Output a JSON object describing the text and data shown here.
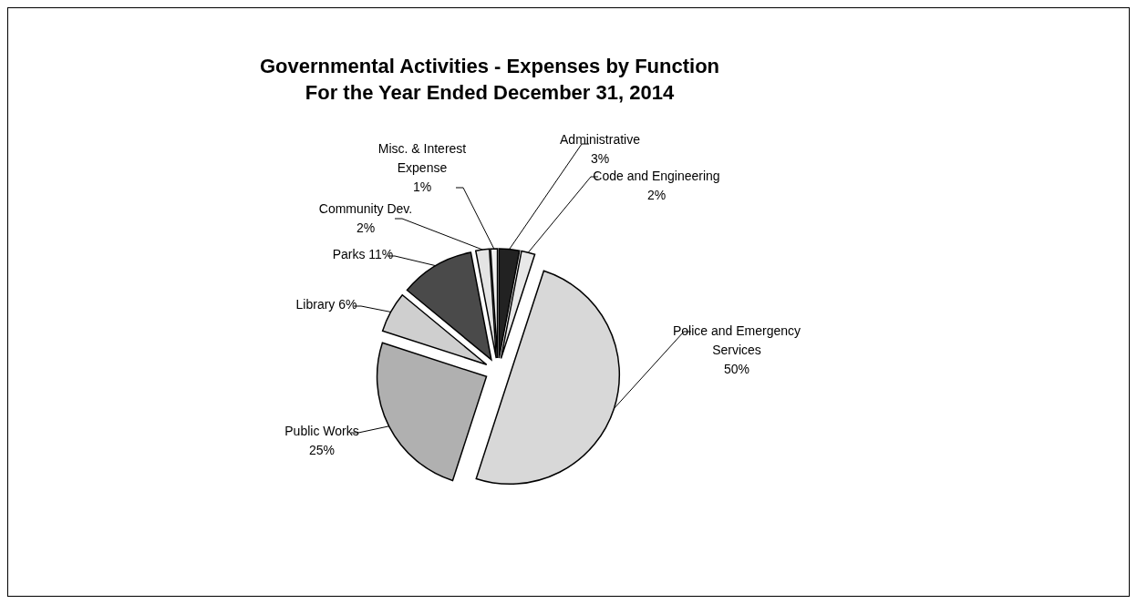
{
  "chart_data": {
    "type": "pie",
    "title": "Governmental Activities - Expenses by Function\nFor the Year Ended December 31, 2014",
    "categories": [
      "Administrative",
      "Code and Engineering",
      "Police and Emergency Services",
      "Public Works",
      "Library",
      "Parks",
      "Community Dev.",
      "Misc. & Interest Expense"
    ],
    "values": [
      3,
      2,
      50,
      25,
      6,
      11,
      2,
      1
    ],
    "colors": [
      "#222222",
      "#e8e8e8",
      "#d8d8d8",
      "#b0b0b0",
      "#cfcfcf",
      "#4a4a4a",
      "#e4e4e4",
      "#f0f0f0"
    ],
    "value_labels": [
      "3%",
      "2%",
      "50%",
      "25%",
      "6%",
      "11%",
      "2%",
      "1%"
    ],
    "legend": false
  }
}
